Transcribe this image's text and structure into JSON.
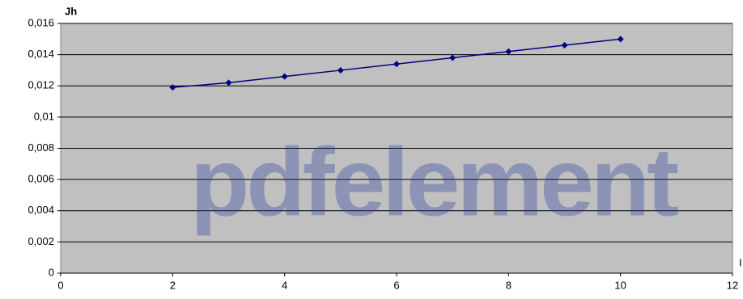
{
  "chart_data": {
    "type": "line",
    "y_label": "Jh",
    "x_label": "I",
    "watermark": "pdfelement",
    "x": [
      2,
      3,
      4,
      5,
      6,
      7,
      8,
      9,
      10
    ],
    "series": [
      {
        "name": "Jh",
        "color": "#000080",
        "values": [
          0.0119,
          0.0122,
          0.0126,
          0.013,
          0.0134,
          0.0138,
          0.0142,
          0.0146,
          0.015
        ]
      }
    ],
    "xlim": [
      0,
      12
    ],
    "xticks": [
      0,
      2,
      4,
      6,
      8,
      10,
      12
    ],
    "ylim": [
      0,
      0.016
    ],
    "yticks": [
      0,
      {
        "value": 0.002,
        "label": "0,002"
      },
      {
        "value": 0.004,
        "label": "0,004"
      },
      {
        "value": 0.006,
        "label": "0,006"
      },
      {
        "value": 0.008,
        "label": "0,008"
      },
      {
        "value": 0.01,
        "label": "0,01"
      },
      {
        "value": 0.012,
        "label": "0,012"
      },
      {
        "value": 0.014,
        "label": "0,014"
      },
      {
        "value": 0.016,
        "label": "0,016"
      }
    ],
    "grid": true,
    "background": "#c0c0c0"
  }
}
